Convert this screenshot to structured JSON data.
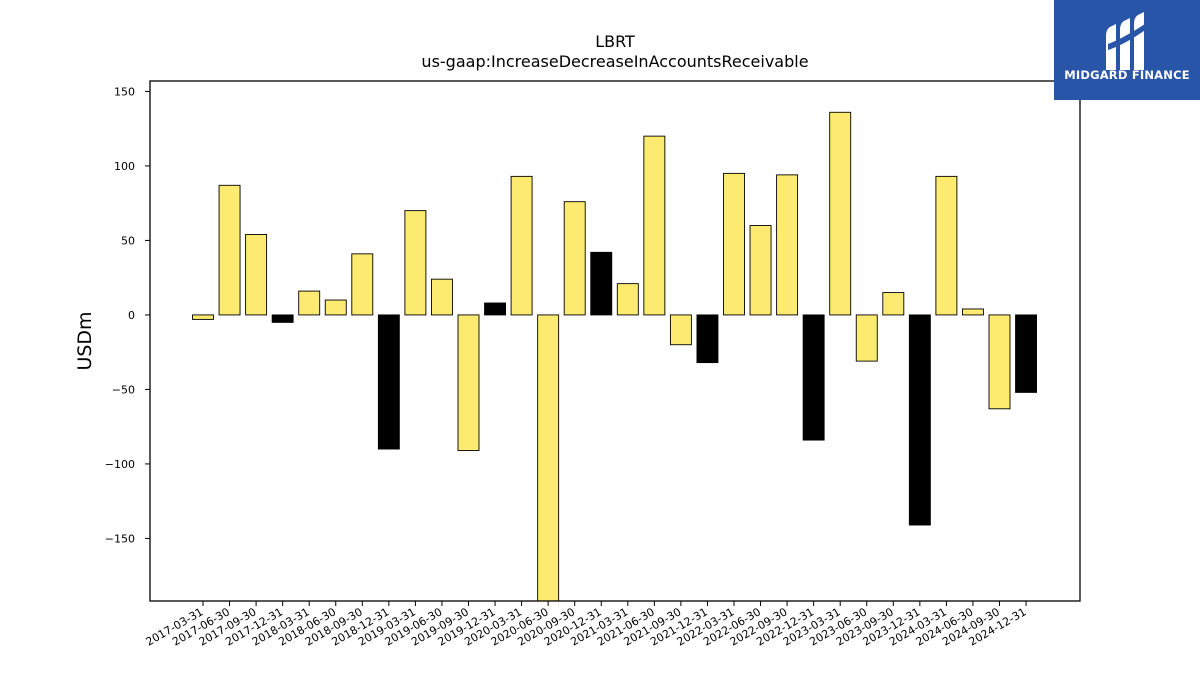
{
  "chart_data": {
    "type": "bar",
    "title": "LBRT",
    "subtitle": "us-gaap:IncreaseDecreaseInAccountsReceivable",
    "xlabel": "",
    "ylabel": "USDm",
    "ylim": [
      -192,
      157
    ],
    "yticks": [
      150,
      100,
      50,
      0,
      -50,
      -100,
      -150
    ],
    "grid": false,
    "categories": [
      "2017-03-31",
      "2017-06-30",
      "2017-09-30",
      "2017-12-31",
      "2018-03-31",
      "2018-06-30",
      "2018-09-30",
      "2018-12-31",
      "2019-03-31",
      "2019-06-30",
      "2019-09-30",
      "2019-12-31",
      "2020-03-31",
      "2020-06-30",
      "2020-09-30",
      "2020-12-31",
      "2021-03-31",
      "2021-06-30",
      "2021-09-30",
      "2021-12-31",
      "2022-03-31",
      "2022-06-30",
      "2022-09-30",
      "2022-12-31",
      "2023-03-31",
      "2023-06-30",
      "2023-09-30",
      "2023-12-31",
      "2024-03-31",
      "2024-06-30",
      "2024-09-30",
      "2024-12-31"
    ],
    "values": [
      -3,
      87,
      54,
      -5,
      16,
      10,
      41,
      -90,
      70,
      24,
      -91,
      8,
      93,
      -192,
      76,
      42,
      21,
      120,
      -20,
      -32,
      95,
      60,
      94,
      -84,
      136,
      -31,
      15,
      -141,
      93,
      4,
      -63,
      -52
    ],
    "colors": {
      "quarter": "#fdeb71",
      "year_end": "#000000",
      "edge": "#000000"
    }
  },
  "logo": {
    "text": "MIDGARD FINANCE",
    "background": "#2855a8"
  }
}
